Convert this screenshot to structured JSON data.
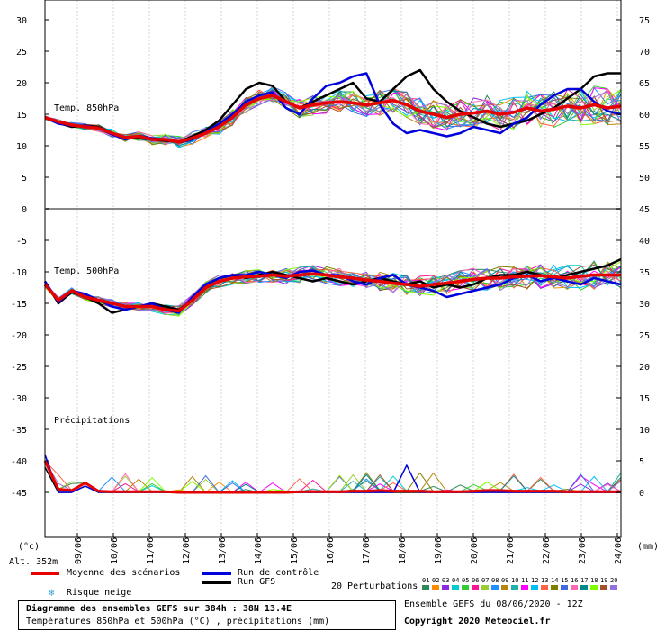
{
  "chart_data": {
    "type": "line",
    "x_dates": [
      "09/06",
      "10/06",
      "11/06",
      "12/06",
      "13/06",
      "14/06",
      "15/06",
      "16/06",
      "17/06",
      "18/06",
      "19/06",
      "20/06",
      "21/06",
      "22/06",
      "23/06",
      "24/06"
    ],
    "left_axis_ticks": [
      "30",
      "25",
      "20",
      "15",
      "10",
      "5",
      "0",
      "-5",
      "-10",
      "-15",
      "-20",
      "-25",
      "-30",
      "-35",
      "-40",
      "-45"
    ],
    "right_axis_ticks_top": [
      "75",
      "70",
      "65",
      "60",
      "55",
      "50"
    ],
    "right_axis_ticks_bottom": [
      "45",
      "40",
      "35",
      "30",
      "25",
      "20",
      "15",
      "10",
      "5",
      "0"
    ],
    "left_unit": "(°c)",
    "right_unit": "(mm)",
    "panel_labels": {
      "t850": "Temp. 850hPa",
      "t500": "Temp. 500hPa",
      "precip": "Précipitations"
    },
    "altitude": "Alt. 352m",
    "series": [
      {
        "name": "Moyenne des scénarios",
        "color": "#e60000"
      },
      {
        "name": "Run de contrôle",
        "color": "#0000dd"
      },
      {
        "name": "Run GFS",
        "color": "#000000"
      }
    ],
    "t850_mean": [
      14.5,
      13.8,
      13.3,
      13.0,
      12.8,
      12.0,
      11.3,
      11.5,
      11.0,
      11.0,
      10.6,
      11.2,
      12.0,
      13.0,
      14.5,
      16.5,
      17.5,
      18.0,
      17.0,
      16.0,
      16.5,
      16.8,
      17.0,
      16.8,
      16.5,
      16.8,
      17.2,
      16.5,
      15.5,
      15.0,
      14.5,
      15.0,
      15.2,
      15.5,
      15.0,
      15.3,
      16.0,
      15.5,
      15.8,
      16.3,
      16.0,
      16.5,
      16.0,
      16.3
    ],
    "t850_control": [
      14.5,
      13.5,
      13.2,
      13.2,
      12.8,
      11.8,
      11.0,
      11.6,
      11.2,
      11.0,
      10.5,
      11.0,
      12.2,
      13.5,
      15.0,
      17.0,
      18.0,
      18.5,
      16.0,
      15.0,
      17.5,
      19.5,
      20.0,
      21.0,
      21.5,
      16.5,
      13.5,
      12.0,
      12.5,
      12.0,
      11.5,
      12.0,
      13.0,
      12.5,
      12.0,
      13.5,
      14.5,
      16.5,
      18.0,
      19.0,
      19.0,
      17.0,
      15.5,
      15.0
    ],
    "t850_gfs": [
      14.5,
      13.6,
      13.0,
      13.2,
      13.0,
      12.0,
      11.2,
      11.2,
      11.0,
      10.8,
      10.6,
      11.5,
      12.5,
      14.0,
      16.5,
      19.0,
      20.0,
      19.5,
      17.0,
      16.0,
      17.0,
      18.0,
      19.0,
      20.0,
      17.5,
      17.0,
      19.0,
      21.0,
      22.0,
      19.0,
      17.0,
      15.5,
      14.5,
      13.5,
      13.0,
      13.5,
      14.0,
      15.0,
      16.0,
      17.5,
      19.0,
      21.0,
      21.5,
      21.5
    ],
    "t500_mean": [
      -12.0,
      -14.5,
      -13.0,
      -14.0,
      -14.5,
      -15.0,
      -15.5,
      -15.5,
      -15.5,
      -16.0,
      -16.2,
      -14.5,
      -12.5,
      -11.5,
      -11.0,
      -10.8,
      -10.7,
      -10.5,
      -10.7,
      -10.5,
      -10.3,
      -10.5,
      -10.8,
      -11.0,
      -11.3,
      -11.5,
      -11.8,
      -12.0,
      -12.3,
      -12.0,
      -11.8,
      -11.5,
      -11.2,
      -11.0,
      -11.0,
      -10.8,
      -10.7,
      -10.6,
      -10.8,
      -11.0,
      -10.7,
      -10.5,
      -10.5,
      -10.5
    ],
    "t500_control": [
      -11.5,
      -14.8,
      -13.0,
      -13.5,
      -14.5,
      -15.5,
      -16.0,
      -15.5,
      -15.0,
      -16.0,
      -16.5,
      -14.0,
      -12.0,
      -11.0,
      -10.5,
      -10.5,
      -10.0,
      -10.5,
      -11.0,
      -10.0,
      -9.8,
      -10.5,
      -10.5,
      -11.5,
      -12.0,
      -11.0,
      -10.5,
      -12.0,
      -12.5,
      -13.0,
      -14.0,
      -13.5,
      -13.0,
      -12.5,
      -12.0,
      -11.0,
      -10.5,
      -11.5,
      -11.0,
      -11.5,
      -12.0,
      -11.0,
      -11.5,
      -12.0
    ],
    "t500_gfs": [
      -11.5,
      -15.0,
      -13.2,
      -14.0,
      -15.0,
      -16.5,
      -16.0,
      -15.5,
      -15.0,
      -15.5,
      -16.0,
      -14.5,
      -12.0,
      -11.0,
      -10.5,
      -11.0,
      -10.5,
      -10.0,
      -10.5,
      -11.0,
      -11.5,
      -11.0,
      -11.5,
      -12.0,
      -11.5,
      -11.0,
      -11.5,
      -12.0,
      -11.5,
      -12.5,
      -12.0,
      -12.5,
      -12.0,
      -11.0,
      -10.5,
      -10.5,
      -10.0,
      -10.5,
      -11.0,
      -10.5,
      -10.0,
      -9.5,
      -9.0,
      -8.0
    ],
    "precip_mean": [
      5.0,
      0.5,
      0.3,
      1.5,
      0.2,
      0.1,
      0.1,
      0.1,
      0.1,
      0.1,
      0.0,
      0.0,
      0.0,
      0.0,
      0.0,
      0.0,
      0.0,
      0.0,
      0.0,
      0.1,
      0.1,
      0.1,
      0.1,
      0.2,
      0.2,
      0.3,
      0.2,
      0.2,
      0.2,
      0.1,
      0.1,
      0.1,
      0.2,
      0.3,
      0.3,
      0.2,
      0.2,
      0.2,
      0.2,
      0.1,
      0.1,
      0.1,
      0.1,
      0.1
    ],
    "precip_control": [
      6.0,
      0.0,
      0.0,
      1.0,
      0.0,
      0.0,
      0.0,
      0.0,
      0.0,
      0.0,
      0.0,
      0.0,
      0.0,
      0.0,
      0.0,
      0.0,
      0.0,
      0.0,
      0.0,
      0.0,
      0.0,
      0.0,
      0.0,
      0.0,
      0.0,
      0.0,
      0.0,
      4.3,
      0.0,
      0.0,
      0.0,
      0.0,
      0.0,
      0.0,
      0.0,
      0.0,
      0.0,
      0.0,
      0.0,
      0.0,
      0.0,
      0.0,
      0.0,
      0.0
    ],
    "precip_gfs": [
      4.0,
      0.0,
      0.0,
      1.0,
      0.0,
      0.0,
      0.0,
      0.0,
      0.0,
      0.0,
      0.0,
      0.0,
      0.0,
      0.0,
      0.0,
      0.0,
      0.0,
      0.0,
      0.0,
      0.0,
      0.0,
      0.0,
      0.0,
      0.0,
      0.0,
      0.0,
      0.0,
      0.0,
      0.0,
      0.0,
      0.0,
      0.0,
      0.0,
      0.0,
      0.0,
      0.0,
      0.0,
      0.0,
      0.0,
      0.0,
      0.0,
      0.0,
      0.0,
      0.0
    ],
    "perturbation_colors": [
      "#2e8b57",
      "#ff8c00",
      "#8a2be2",
      "#00ced1",
      "#32cd32",
      "#ff1493",
      "#9acd32",
      "#1e90ff",
      "#b8860b",
      "#20b2aa",
      "#ff00ff",
      "#00bfff",
      "#ff6347",
      "#808000",
      "#4169e1",
      "#ff69b4",
      "#008b8b",
      "#7fff00",
      "#a0522d",
      "#9370db"
    ]
  },
  "legend": {
    "mean": "Moyenne des scénarios",
    "control": "Run de contrôle",
    "gfs": "Run GFS",
    "snow": "Risque neige",
    "perturbations": "20 Perturbations",
    "pert_numbers": [
      "01",
      "02",
      "03",
      "04",
      "05",
      "06",
      "07",
      "08",
      "09",
      "10",
      "11",
      "12",
      "13",
      "14",
      "15",
      "16",
      "17",
      "18",
      "19",
      "20"
    ]
  },
  "info": {
    "title": "Diagramme des ensembles GEFS sur 384h : 38N 13.4E",
    "subtitle": "Températures 850hPa et 500hPa (°C) , précipitations (mm)",
    "run": "Ensemble GEFS du 08/06/2020 - 12Z",
    "copyright": "Copyright 2020 Meteociel.fr"
  }
}
